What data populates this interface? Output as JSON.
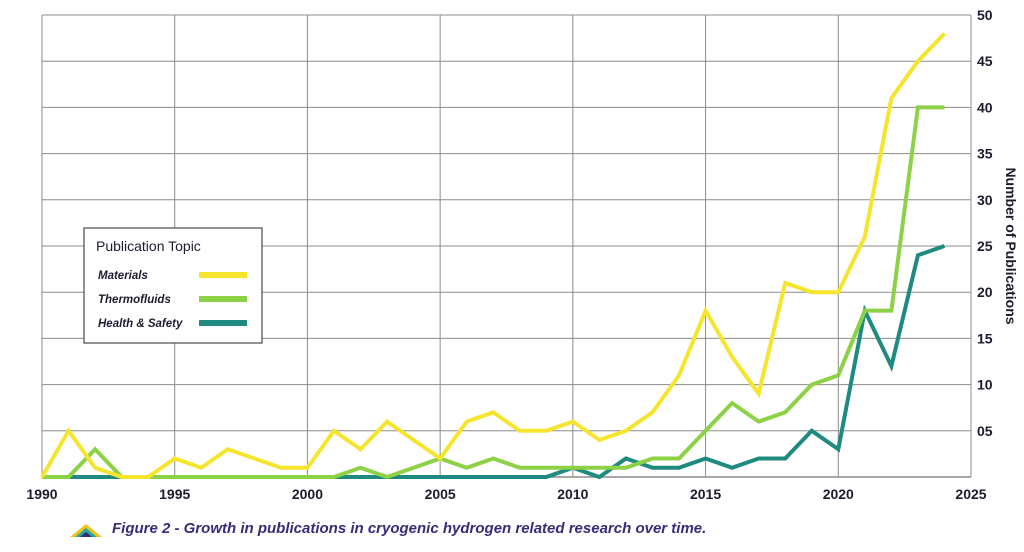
{
  "chart_data": {
    "type": "line",
    "title": "",
    "xlabel": "",
    "ylabel": "Number of Publications",
    "xlim": [
      1990,
      2025
    ],
    "ylim": [
      0,
      50
    ],
    "x_ticks": [
      "1990",
      "1995",
      "2000",
      "2005",
      "2010",
      "2015",
      "2020",
      "2025"
    ],
    "y_ticks": [
      "05",
      "10",
      "15",
      "20",
      "25",
      "30",
      "35",
      "40",
      "45",
      "50"
    ],
    "legend_title": "Publication Topic",
    "legend_position": "left",
    "x": [
      1990,
      1991,
      1992,
      1993,
      1994,
      1995,
      1996,
      1997,
      1998,
      1999,
      2000,
      2001,
      2002,
      2003,
      2004,
      2005,
      2006,
      2007,
      2008,
      2009,
      2010,
      2011,
      2012,
      2013,
      2014,
      2015,
      2016,
      2017,
      2018,
      2019,
      2020,
      2021,
      2022,
      2023,
      2024
    ],
    "series": [
      {
        "name": "Materials",
        "color": "#f5e52e",
        "values": [
          0,
          5,
          1,
          0,
          0,
          2,
          1,
          3,
          2,
          1,
          1,
          5,
          3,
          6,
          4,
          2,
          6,
          7,
          5,
          5,
          6,
          4,
          5,
          7,
          11,
          18,
          13,
          9,
          21,
          20,
          20,
          26,
          41,
          45,
          48
        ]
      },
      {
        "name": "Thermofluids",
        "color": "#8cd146",
        "values": [
          0,
          0,
          3,
          0,
          0,
          0,
          0,
          0,
          0,
          0,
          0,
          0,
          1,
          0,
          1,
          2,
          1,
          2,
          1,
          1,
          1,
          1,
          1,
          2,
          2,
          5,
          8,
          6,
          7,
          10,
          11,
          18,
          18,
          40,
          40
        ]
      },
      {
        "name": "Health & Safety",
        "color": "#1e8a80",
        "values": [
          0,
          0,
          0,
          0,
          0,
          0,
          0,
          0,
          0,
          0,
          0,
          0,
          0,
          0,
          0,
          0,
          0,
          0,
          0,
          0,
          1,
          0,
          2,
          1,
          1,
          2,
          1,
          2,
          2,
          5,
          3,
          18,
          12,
          24,
          25
        ]
      }
    ]
  },
  "caption": "Figure 2 - Growth in publications in cryogenic hydrogen related research over time."
}
